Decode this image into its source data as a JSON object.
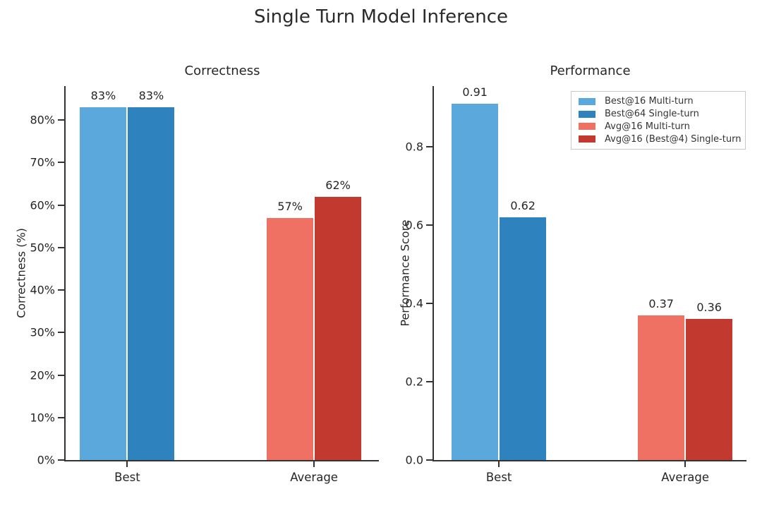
{
  "title": "Single Turn Model Inference",
  "colors": {
    "best16_multi_turn": "#5BA9DC",
    "best64_single_turn": "#2E82BE",
    "avg16_multi_turn": "#EE7164",
    "avg16_best4_single_turn": "#C23A2F",
    "axis": "#333333",
    "text": "#262626"
  },
  "chart_data": [
    {
      "type": "bar",
      "title": "Correctness",
      "xlabel": "",
      "ylabel": "Correctness (%)",
      "categories": [
        "Best",
        "Average"
      ],
      "series": [
        {
          "name": "Best@16 Multi-turn",
          "color": "#5BA9DC",
          "values": [
            83,
            null
          ],
          "bar_labels": [
            "83%",
            null
          ]
        },
        {
          "name": "Best@64 Single-turn",
          "color": "#2E82BE",
          "values": [
            83,
            null
          ],
          "bar_labels": [
            "83%",
            null
          ]
        },
        {
          "name": "Avg@16 Multi-turn",
          "color": "#EE7164",
          "values": [
            null,
            57
          ],
          "bar_labels": [
            null,
            "57%"
          ]
        },
        {
          "name": "Avg@16 (Best@4) Single-turn",
          "color": "#C23A2F",
          "values": [
            null,
            62
          ],
          "bar_labels": [
            null,
            "62%"
          ]
        }
      ],
      "ylim": [
        0,
        88
      ],
      "yticks": [
        {
          "value": 0,
          "label": "0%"
        },
        {
          "value": 10,
          "label": "10%"
        },
        {
          "value": 20,
          "label": "20%"
        },
        {
          "value": 30,
          "label": "30%"
        },
        {
          "value": 40,
          "label": "40%"
        },
        {
          "value": 50,
          "label": "50%"
        },
        {
          "value": 60,
          "label": "60%"
        },
        {
          "value": 70,
          "label": "70%"
        },
        {
          "value": 80,
          "label": "80%"
        }
      ],
      "grid": false,
      "legend": null
    },
    {
      "type": "bar",
      "title": "Performance",
      "xlabel": "",
      "ylabel": "Performance Score",
      "categories": [
        "Best",
        "Average"
      ],
      "series": [
        {
          "name": "Best@16 Multi-turn",
          "color": "#5BA9DC",
          "values": [
            0.91,
            null
          ],
          "bar_labels": [
            "0.91",
            null
          ]
        },
        {
          "name": "Best@64 Single-turn",
          "color": "#2E82BE",
          "values": [
            0.62,
            null
          ],
          "bar_labels": [
            "0.62",
            null
          ]
        },
        {
          "name": "Avg@16 Multi-turn",
          "color": "#EE7164",
          "values": [
            null,
            0.37
          ],
          "bar_labels": [
            null,
            "0.37"
          ]
        },
        {
          "name": "Avg@16 (Best@4) Single-turn",
          "color": "#C23A2F",
          "values": [
            null,
            0.36
          ],
          "bar_labels": [
            null,
            "0.36"
          ]
        }
      ],
      "ylim": [
        0,
        0.955
      ],
      "yticks": [
        {
          "value": 0,
          "label": "0.0"
        },
        {
          "value": 0.2,
          "label": "0.2"
        },
        {
          "value": 0.4,
          "label": "0.4"
        },
        {
          "value": 0.6,
          "label": "0.6"
        },
        {
          "value": 0.8,
          "label": "0.8"
        }
      ],
      "grid": false,
      "legend": {
        "position": "upper right",
        "entries": [
          {
            "label": "Best@16 Multi-turn",
            "color": "#5BA9DC"
          },
          {
            "label": "Best@64 Single-turn",
            "color": "#2E82BE"
          },
          {
            "label": "Avg@16 Multi-turn",
            "color": "#EE7164"
          },
          {
            "label": "Avg@16 (Best@4) Single-turn",
            "color": "#C23A2F"
          }
        ]
      }
    }
  ]
}
